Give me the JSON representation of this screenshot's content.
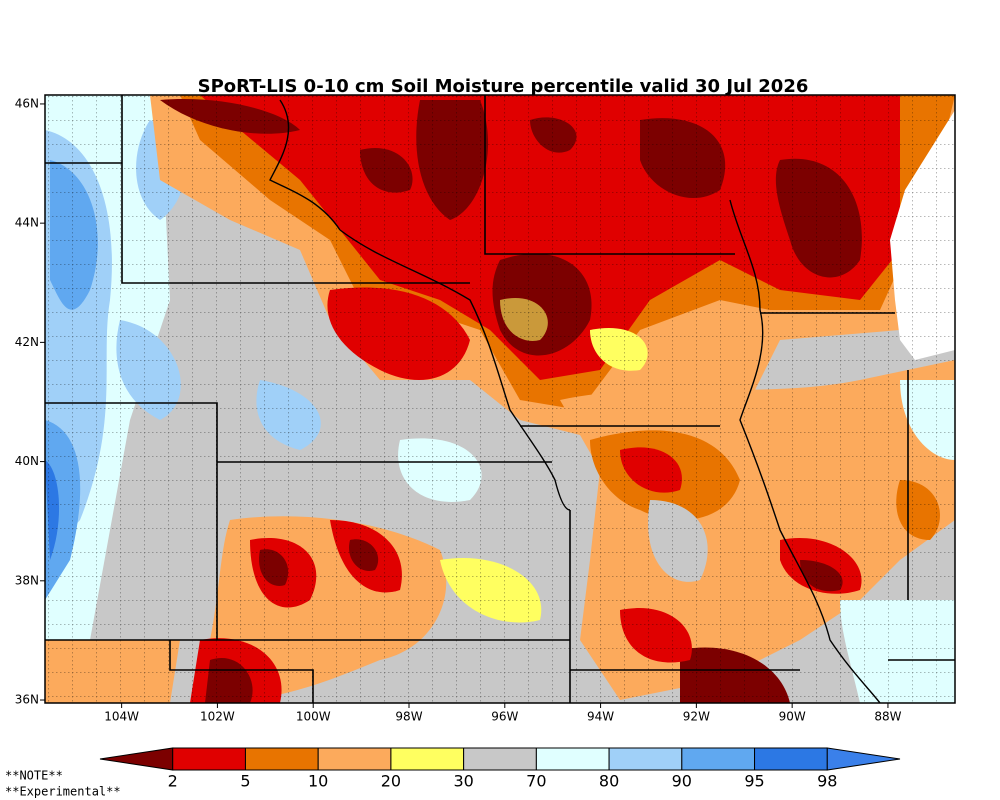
{
  "map": {
    "title": "SPoRT-LIS 0-10 cm Soil Moisture percentile valid 30 Jul 2026",
    "xlim": [
      -105.6,
      -86.6
    ],
    "ylim": [
      35.95,
      46.15
    ],
    "xticks": [
      {
        "value": -104,
        "label": "104W"
      },
      {
        "value": -102,
        "label": "102W"
      },
      {
        "value": -100,
        "label": "100W"
      },
      {
        "value": -98,
        "label": "98W"
      },
      {
        "value": -96,
        "label": "96W"
      },
      {
        "value": -94,
        "label": "94W"
      },
      {
        "value": -92,
        "label": "92W"
      },
      {
        "value": -90,
        "label": "90W"
      },
      {
        "value": -88,
        "label": "88W"
      }
    ],
    "yticks": [
      {
        "value": 36,
        "label": "36N"
      },
      {
        "value": 38,
        "label": "38N"
      },
      {
        "value": 40,
        "label": "40N"
      },
      {
        "value": 42,
        "label": "42N"
      },
      {
        "value": 44,
        "label": "44N"
      },
      {
        "value": 46,
        "label": "46N"
      }
    ],
    "colorbar": {
      "bounds": [
        2,
        5,
        10,
        20,
        30,
        70,
        80,
        90,
        95,
        98
      ],
      "colors": [
        "#7c0000",
        "#e00000",
        "#e87400",
        "#fcaa5c",
        "#ffff60",
        "#c8c8c8",
        "#e0ffff",
        "#a0d0f8",
        "#60a8f0",
        "#2c78e4",
        "#3a80ea"
      ]
    },
    "notes": [
      "**NOTE**",
      "**Experimental**"
    ]
  }
}
